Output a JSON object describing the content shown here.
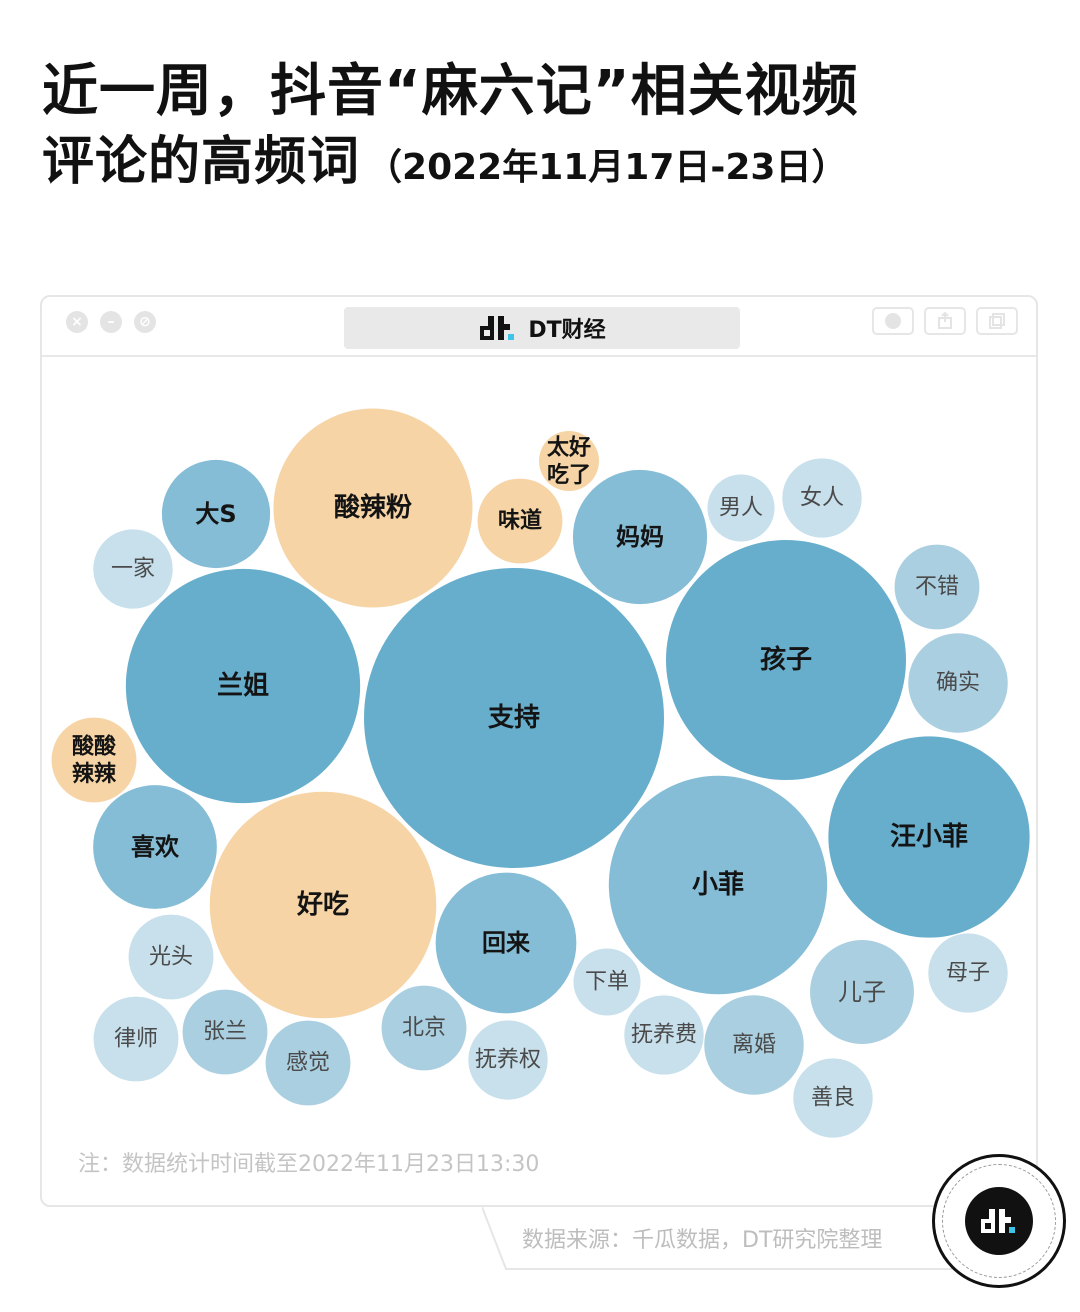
{
  "header": {
    "title_line1": "近一周，抖音“麻六记”相关视频",
    "title_line2": "评论的高频词",
    "title_sub": "（2022年11月17日-23日）"
  },
  "window": {
    "brand": "DT财经",
    "logo_icon": "dt-logo-icon",
    "control_icons": [
      "close-icon",
      "minimize-icon",
      "restore-icon"
    ]
  },
  "colors": {
    "food": "#f6d4a6",
    "blue_dark": "#67aecd",
    "blue_mid": "#86bdd6",
    "blue_light": "#aacfe0",
    "blue_pale": "#c7e0ec"
  },
  "chart_data": {
    "type": "bubble",
    "bubbles": [
      {
        "label": "支持",
        "color": "blue_dark",
        "weight": 100
      },
      {
        "label": "孩子",
        "color": "blue_dark",
        "weight": 64
      },
      {
        "label": "兰姐",
        "color": "blue_dark",
        "weight": 61
      },
      {
        "label": "汪小菲",
        "color": "blue_dark",
        "weight": 45
      },
      {
        "label": "小菲",
        "color": "blue_mid",
        "weight": 53
      },
      {
        "label": "好吃",
        "color": "food",
        "weight": 57
      },
      {
        "label": "酸辣粉",
        "color": "food",
        "weight": 44
      },
      {
        "label": "回来",
        "color": "blue_mid",
        "weight": 22
      },
      {
        "label": "妈妈",
        "color": "blue_mid",
        "weight": 20
      },
      {
        "label": "喜欢",
        "color": "blue_mid",
        "weight": 17
      },
      {
        "label": "儿子",
        "color": "blue_light",
        "weight": 12
      },
      {
        "label": "大S",
        "color": "blue_mid",
        "weight": 13
      },
      {
        "label": "确实",
        "color": "blue_light",
        "weight": 11
      },
      {
        "label": "离婚",
        "color": "blue_light",
        "weight": 11
      },
      {
        "label": "味道",
        "color": "food",
        "weight": 8
      },
      {
        "label": "酸酸\n辣辣",
        "color": "food",
        "weight": 8
      },
      {
        "label": "不错",
        "color": "blue_light",
        "weight": 8
      },
      {
        "label": "感觉",
        "color": "blue_light",
        "weight": 8
      },
      {
        "label": "律师",
        "color": "blue_pale",
        "weight": 8
      },
      {
        "label": "光头",
        "color": "blue_pale",
        "weight": 8
      },
      {
        "label": "张兰",
        "color": "blue_light",
        "weight": 8
      },
      {
        "label": "北京",
        "color": "blue_light",
        "weight": 8
      },
      {
        "label": "抚养权",
        "color": "blue_pale",
        "weight": 7
      },
      {
        "label": "抚养费",
        "color": "blue_pale",
        "weight": 7
      },
      {
        "label": "善良",
        "color": "blue_pale",
        "weight": 7
      },
      {
        "label": "女人",
        "color": "blue_pale",
        "weight": 7
      },
      {
        "label": "母子",
        "color": "blue_pale",
        "weight": 7
      },
      {
        "label": "男人",
        "color": "blue_pale",
        "weight": 5
      },
      {
        "label": "一家",
        "color": "blue_pale",
        "weight": 7
      },
      {
        "label": "下单",
        "color": "blue_pale",
        "weight": 5
      },
      {
        "label": "太好\n吃了",
        "color": "food",
        "weight": 4
      }
    ]
  },
  "footer": {
    "note": "注：数据统计时间截至2022年11月23日13:30",
    "source": "数据来源：千瓜数据，DT研究院整理",
    "badge_icon": "dt-badge-icon"
  }
}
